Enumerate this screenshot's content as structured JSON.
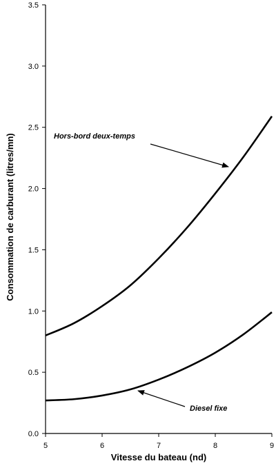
{
  "chart_data": {
    "type": "line",
    "xlabel": "Vitesse du bateau (nd)",
    "ylabel": "Consommation de carburant (litres/mn)",
    "xlim": [
      5,
      9
    ],
    "ylim": [
      0,
      3.5
    ],
    "x_ticks": [
      "5",
      "6",
      "7",
      "8",
      "9"
    ],
    "y_ticks": [
      "0.0",
      "0.5",
      "1.0",
      "1.5",
      "2.0",
      "2.5",
      "3.0",
      "3.5"
    ],
    "grid": false,
    "series": [
      {
        "name": "Hors-bord deux-temps",
        "x": [
          5,
          5.5,
          6,
          6.5,
          7,
          7.5,
          8,
          8.5,
          9
        ],
        "y": [
          0.8,
          0.9,
          1.04,
          1.21,
          1.43,
          1.68,
          1.96,
          2.26,
          2.59
        ]
      },
      {
        "name": "Diesel fixe",
        "x": [
          5,
          5.5,
          6,
          6.5,
          7,
          7.5,
          8,
          8.5,
          9
        ],
        "y": [
          0.27,
          0.28,
          0.31,
          0.36,
          0.44,
          0.54,
          0.66,
          0.81,
          0.99
        ]
      }
    ],
    "annotations": [
      {
        "text": "Hors-bord deux-temps",
        "series": 0
      },
      {
        "text": "Diesel  fixe",
        "series": 1
      }
    ]
  }
}
